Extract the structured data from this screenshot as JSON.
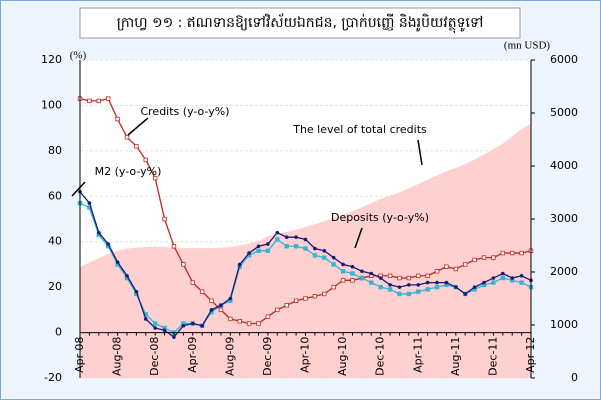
{
  "chart_data": {
    "type": "line",
    "title": "ក្រាហ្វ ១១ : ឥណទានឱ្យទៅវិស័យឯកជន, ប្រាក់បញ្ញើ និងរូបិយវត្ថុទូទៅ",
    "ylabel": "(%)",
    "y2label": "(mn USD)",
    "categories": [
      "Apr-08",
      null,
      null,
      null,
      "Aug-08",
      null,
      null,
      null,
      "Dec-08",
      null,
      null,
      null,
      "Apr-09",
      null,
      null,
      null,
      "Aug-09",
      null,
      null,
      null,
      "Dec-09",
      null,
      null,
      null,
      "Apr-10",
      null,
      null,
      null,
      "Aug-10",
      null,
      null,
      null,
      "Dec-10",
      null,
      null,
      null,
      "Apr-11",
      null,
      null,
      null,
      "Aug-11",
      null,
      null,
      null,
      "Dec-11",
      null,
      null,
      null,
      "Apr-12"
    ],
    "ylim": [
      -20,
      120
    ],
    "yticks": [
      -20,
      0,
      20,
      40,
      60,
      80,
      100,
      120
    ],
    "y2lim": [
      0,
      6000
    ],
    "y2ticks": [
      0,
      1000,
      2000,
      3000,
      4000,
      5000,
      6000
    ],
    "grid": true,
    "series": [
      {
        "name": "The level of total credits",
        "color": "#ffd0d0",
        "axis": "y2",
        "kind": "area",
        "values": [
          2100,
          2180,
          2260,
          2340,
          2400,
          2440,
          2460,
          2470,
          2480,
          2470,
          2460,
          2450,
          2450,
          2450,
          2450,
          2460,
          2470,
          2500,
          2540,
          2580,
          2680,
          2720,
          2760,
          2800,
          2850,
          2900,
          2960,
          3020,
          3080,
          3140,
          3220,
          3300,
          3380,
          3440,
          3500,
          3580,
          3660,
          3740,
          3820,
          3900,
          3960,
          4040,
          4120,
          4220,
          4320,
          4420,
          4560,
          4700,
          4800
        ]
      },
      {
        "name": "Credits (y-o-y%)",
        "color": "#c0281e",
        "marker": "square",
        "values": [
          103,
          102,
          102,
          103,
          94,
          86,
          82,
          76,
          68,
          50,
          38,
          30,
          22,
          18,
          14,
          10,
          6,
          5,
          4,
          4,
          7,
          10,
          12,
          14,
          15,
          16,
          17,
          20,
          23,
          23,
          24,
          25,
          25,
          25,
          24,
          24,
          25,
          25,
          27,
          29,
          28,
          30,
          32,
          33,
          33,
          35,
          35,
          35,
          36
        ]
      },
      {
        "name": "M2 (y-o-y%)",
        "color": "#33b5d5",
        "marker": "square",
        "values": [
          57,
          55,
          43,
          38,
          30,
          24,
          17,
          8,
          4,
          2,
          0,
          4,
          4,
          3,
          9,
          12,
          14,
          29,
          34,
          36,
          36,
          41,
          38,
          38,
          37,
          34,
          33,
          30,
          27,
          26,
          24,
          22,
          20,
          19,
          17,
          17,
          18,
          19,
          20,
          21,
          20,
          17,
          19,
          21,
          22,
          24,
          23,
          22,
          20
        ]
      },
      {
        "name": "Deposits (y-o-y%)",
        "color": "#1a1a7a",
        "marker": "circle",
        "values": [
          62,
          57,
          44,
          39,
          31,
          25,
          18,
          6,
          2,
          1,
          -2,
          3,
          4,
          3,
          10,
          12,
          15,
          30,
          35,
          38,
          39,
          44,
          42,
          42,
          41,
          37,
          36,
          33,
          30,
          29,
          27,
          26,
          24,
          21,
          20,
          21,
          21,
          22,
          22,
          22,
          20,
          17,
          20,
          22,
          24,
          26,
          24,
          25,
          23
        ]
      }
    ]
  }
}
